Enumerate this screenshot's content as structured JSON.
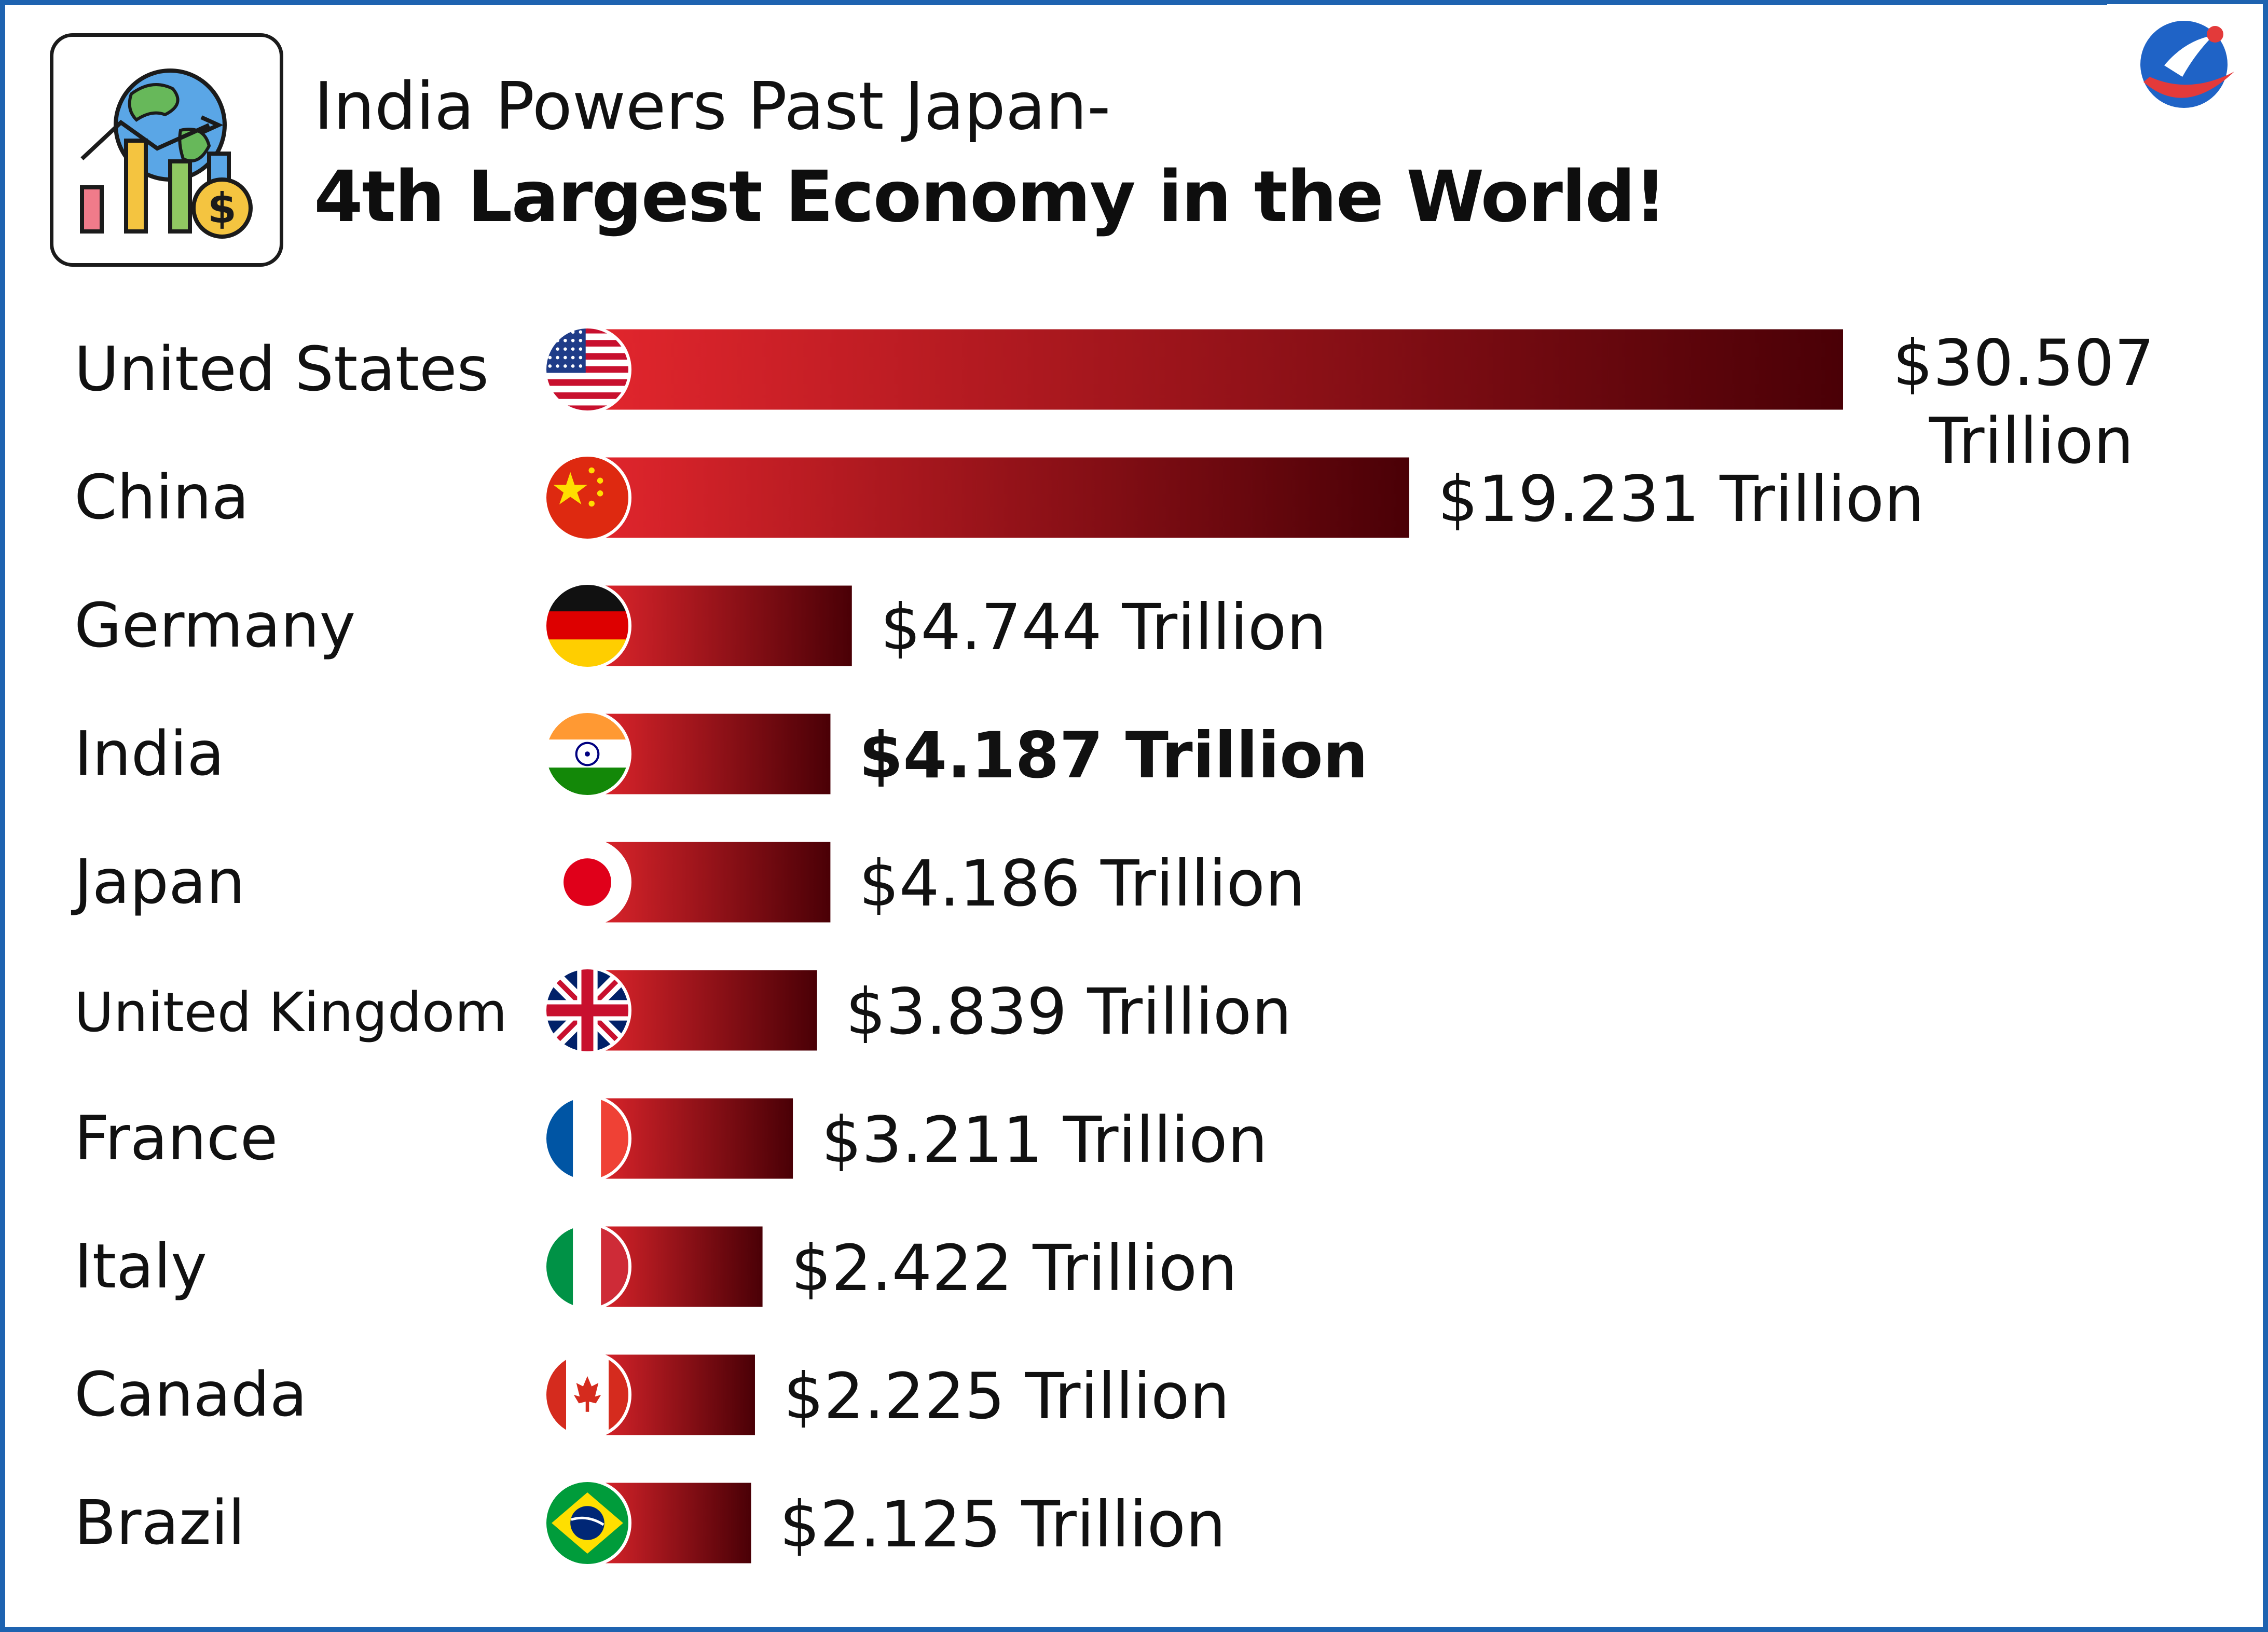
{
  "header": {
    "title_line1": "India Powers Past Japan-",
    "title_line2": "4th Largest Economy in the World!",
    "icon": "globe-chart-dollar-icon"
  },
  "colors": {
    "frame": "#1e63b0",
    "bar_start": "#e3262d",
    "bar_end": "#4a0006"
  },
  "chart_data": {
    "type": "bar",
    "orientation": "horizontal",
    "unit": "Trillion USD",
    "categories": [
      "United States",
      "China",
      "Germany",
      "India",
      "Japan",
      "United Kingdom",
      "France",
      "Italy",
      "Canada",
      "Brazil"
    ],
    "values": [
      30.507,
      19.231,
      4.744,
      4.187,
      4.186,
      3.839,
      3.211,
      2.422,
      2.225,
      2.125
    ],
    "value_labels": [
      "$30.507 Trillion",
      "$19.231 Trillion",
      "$4.744 Trillion",
      "$4.187 Trillion",
      "$4.186 Trillion",
      "$3.839 Trillion",
      "$3.211 Trillion",
      "$2.422 Trillion",
      "$2.225 Trillion",
      "$2.125 Trillion"
    ],
    "highlight": "India",
    "flags": [
      "us-flag-icon",
      "china-flag-icon",
      "germany-flag-icon",
      "india-flag-icon",
      "japan-flag-icon",
      "uk-flag-icon",
      "france-flag-icon",
      "italy-flag-icon",
      "canada-flag-icon",
      "brazil-flag-icon"
    ],
    "grid": false,
    "legend": "none"
  }
}
